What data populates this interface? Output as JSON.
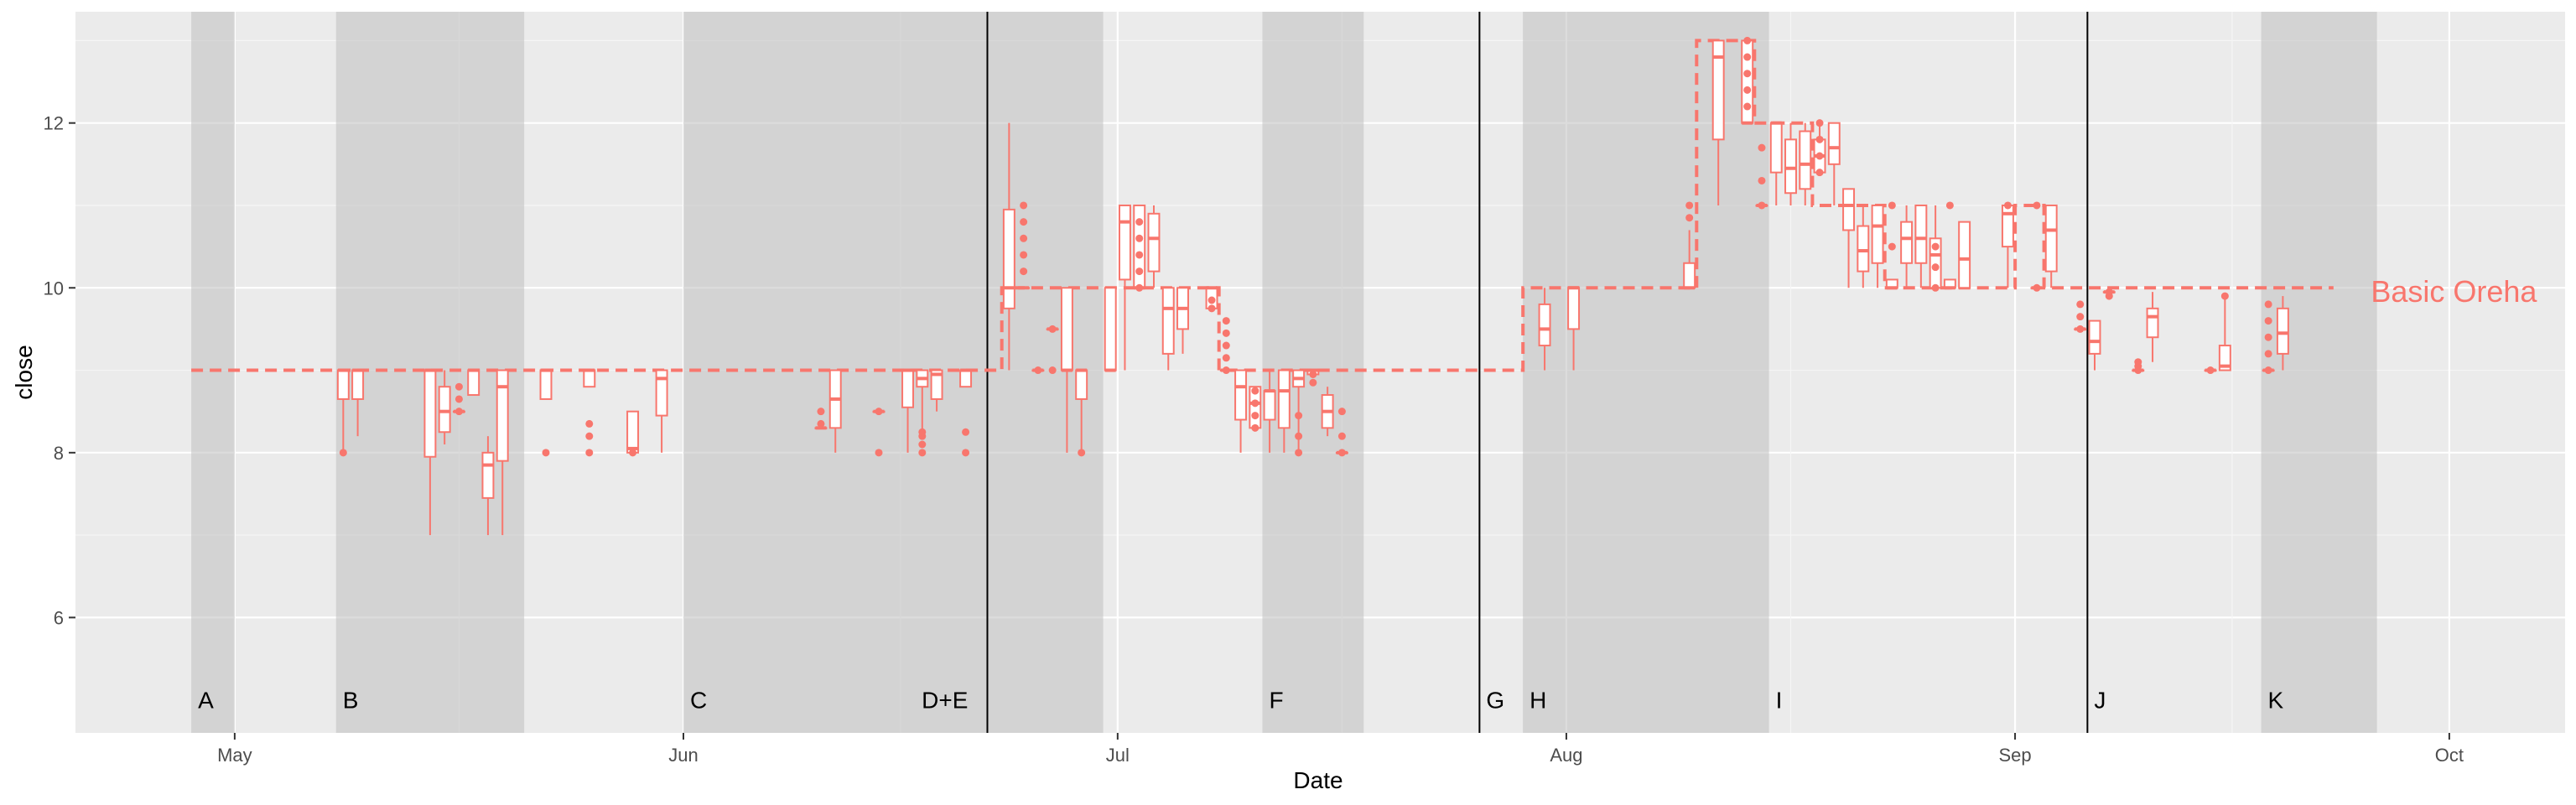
{
  "chart_data": {
    "type": "box",
    "title": "",
    "xlabel": "Date",
    "ylabel": "close",
    "x_axis": {
      "type": "date",
      "range": [
        "2023-04-20",
        "2023-10-09"
      ],
      "ticks": [
        "2023-05-01",
        "2023-06-01",
        "2023-07-01",
        "2023-08-01",
        "2023-09-01",
        "2023-10-01"
      ],
      "tick_labels": [
        "May",
        "Jun",
        "Jul",
        "Aug",
        "Sep",
        "Oct"
      ]
    },
    "y_axis": {
      "range": [
        4.6,
        13.35
      ],
      "ticks": [
        6,
        8,
        10,
        12
      ],
      "tick_labels": [
        "6",
        "8",
        "10",
        "12"
      ]
    },
    "grid": true,
    "colors": {
      "panel": "#ebebeb",
      "grid_major": "#ffffff",
      "series": "#f8766d",
      "shade": "#bfbfbf",
      "vline": "#000000"
    },
    "series_label": {
      "text": "Basic Oreha",
      "x": "2023-09-25",
      "y": 9.95
    },
    "shaded_regions": [
      {
        "start": "2023-04-28",
        "end": "2023-05-01"
      },
      {
        "start": "2023-05-08",
        "end": "2023-05-21"
      },
      {
        "start": "2023-06-01",
        "end": "2023-06-22"
      },
      {
        "start": "2023-06-22",
        "end": "2023-06-30"
      },
      {
        "start": "2023-07-11",
        "end": "2023-07-18"
      },
      {
        "start": "2023-07-29",
        "end": "2023-08-15"
      },
      {
        "start": "2023-09-18",
        "end": "2023-09-26"
      }
    ],
    "vertical_lines": [
      "2023-06-22",
      "2023-07-26",
      "2023-09-06"
    ],
    "region_labels": [
      {
        "text": "A",
        "x": "2023-04-28"
      },
      {
        "text": "B",
        "x": "2023-05-08"
      },
      {
        "text": "C",
        "x": "2023-06-01"
      },
      {
        "text": "D+E",
        "x": "2023-06-17"
      },
      {
        "text": "F",
        "x": "2023-07-11"
      },
      {
        "text": "G",
        "x": "2023-07-26"
      },
      {
        "text": "H",
        "x": "2023-07-29"
      },
      {
        "text": "I",
        "x": "2023-08-15"
      },
      {
        "text": "J",
        "x": "2023-09-06"
      },
      {
        "text": "K",
        "x": "2023-09-18"
      }
    ],
    "step_line": [
      [
        "2023-04-28",
        9
      ],
      [
        "2023-06-23",
        9
      ],
      [
        "2023-06-23",
        10
      ],
      [
        "2023-07-06",
        10
      ],
      [
        "2023-07-07",
        10
      ],
      [
        "2023-07-08",
        10
      ],
      [
        "2023-07-08",
        9
      ],
      [
        "2023-07-29",
        9
      ],
      [
        "2023-07-29",
        10
      ],
      [
        "2023-08-10",
        10
      ],
      [
        "2023-08-10",
        13
      ],
      [
        "2023-08-14",
        13
      ],
      [
        "2023-08-14",
        12
      ],
      [
        "2023-08-18",
        12
      ],
      [
        "2023-08-18",
        11
      ],
      [
        "2023-08-23",
        11
      ],
      [
        "2023-08-23",
        10
      ],
      [
        "2023-09-01",
        10
      ],
      [
        "2023-09-01",
        11
      ],
      [
        "2023-09-03",
        11
      ],
      [
        "2023-09-03",
        10
      ],
      [
        "2023-09-23",
        10
      ]
    ],
    "boxes": [
      {
        "x": "2023-05-08",
        "min": 8.0,
        "q1": 8.65,
        "median": 9.0,
        "q3": 9.0,
        "max": 9.0,
        "outliers": [
          8.0
        ]
      },
      {
        "x": "2023-05-09",
        "min": 8.2,
        "q1": 8.65,
        "median": 9.0,
        "q3": 9.0,
        "max": 9.0,
        "outliers": []
      },
      {
        "x": "2023-05-14",
        "min": 7.0,
        "q1": 7.95,
        "median": 9.0,
        "q3": 9.0,
        "max": 9.0,
        "outliers": []
      },
      {
        "x": "2023-05-15",
        "min": 8.1,
        "q1": 8.25,
        "median": 8.5,
        "q3": 8.8,
        "max": 9.0,
        "outliers": []
      },
      {
        "x": "2023-05-16",
        "min": 8.5,
        "q1": 8.5,
        "median": 8.5,
        "q3": 8.5,
        "max": 8.5,
        "outliers": [
          8.5,
          8.65,
          8.8
        ]
      },
      {
        "x": "2023-05-17",
        "min": 8.7,
        "q1": 8.7,
        "median": 9.0,
        "q3": 9.0,
        "max": 9.0,
        "outliers": []
      },
      {
        "x": "2023-05-18",
        "min": 7.0,
        "q1": 7.45,
        "median": 7.85,
        "q3": 8.0,
        "max": 8.2,
        "outliers": []
      },
      {
        "x": "2023-05-19",
        "min": 7.0,
        "q1": 7.9,
        "median": 8.8,
        "q3": 9.0,
        "max": 9.0,
        "outliers": []
      },
      {
        "x": "2023-05-22",
        "min": 8.65,
        "q1": 8.65,
        "median": 9.0,
        "q3": 9.0,
        "max": 9.0,
        "outliers": [
          8.0
        ]
      },
      {
        "x": "2023-05-25",
        "min": 8.8,
        "q1": 8.8,
        "median": 9.0,
        "q3": 9.0,
        "max": 9.0,
        "outliers": [
          8.35,
          8.2,
          8.0
        ]
      },
      {
        "x": "2023-05-28",
        "min": 8.0,
        "q1": 8.0,
        "median": 8.05,
        "q3": 8.5,
        "max": 8.5,
        "outliers": [
          8.0
        ]
      },
      {
        "x": "2023-05-30",
        "min": 8.0,
        "q1": 8.45,
        "median": 8.9,
        "q3": 9.0,
        "max": 9.0,
        "outliers": []
      },
      {
        "x": "2023-06-10",
        "min": 8.3,
        "q1": 8.3,
        "median": 8.3,
        "q3": 8.3,
        "max": 8.3,
        "outliers": [
          8.5,
          8.35
        ]
      },
      {
        "x": "2023-06-11",
        "min": 8.0,
        "q1": 8.3,
        "median": 8.65,
        "q3": 9.0,
        "max": 9.0,
        "outliers": []
      },
      {
        "x": "2023-06-14",
        "min": 8.5,
        "q1": 8.5,
        "median": 8.5,
        "q3": 8.5,
        "max": 8.5,
        "outliers": [
          8.5,
          8.0
        ]
      },
      {
        "x": "2023-06-16",
        "min": 8.0,
        "q1": 8.55,
        "median": 9.0,
        "q3": 9.0,
        "max": 9.0,
        "outliers": []
      },
      {
        "x": "2023-06-17",
        "min": 8.2,
        "q1": 8.8,
        "median": 8.9,
        "q3": 9.0,
        "max": 9.0,
        "outliers": [
          8.25,
          8.2,
          8.1,
          8.0
        ]
      },
      {
        "x": "2023-06-18",
        "min": 8.5,
        "q1": 8.65,
        "median": 8.95,
        "q3": 9.0,
        "max": 9.0,
        "outliers": []
      },
      {
        "x": "2023-06-20",
        "min": 8.8,
        "q1": 8.8,
        "median": 9.0,
        "q3": 9.0,
        "max": 9.0,
        "outliers": [
          8.25,
          8.0
        ]
      },
      {
        "x": "2023-06-23",
        "min": 9.0,
        "q1": 9.75,
        "median": 10.0,
        "q3": 10.95,
        "max": 12.0,
        "outliers": []
      },
      {
        "x": "2023-06-24",
        "min": 10.0,
        "q1": 10.0,
        "median": 10.0,
        "q3": 10.0,
        "max": 10.0,
        "outliers": [
          10.2,
          10.4,
          10.6,
          10.8,
          11.0
        ]
      },
      {
        "x": "2023-06-25",
        "min": 9.0,
        "q1": 9.0,
        "median": 9.0,
        "q3": 9.0,
        "max": 9.0,
        "outliers": [
          9.0
        ]
      },
      {
        "x": "2023-06-26",
        "min": 9.5,
        "q1": 9.5,
        "median": 9.5,
        "q3": 9.5,
        "max": 9.5,
        "outliers": [
          9.5,
          9.0
        ]
      },
      {
        "x": "2023-06-27",
        "min": 8.0,
        "q1": 9.0,
        "median": 9.0,
        "q3": 10.0,
        "max": 10.0,
        "outliers": []
      },
      {
        "x": "2023-06-28",
        "min": 8.0,
        "q1": 8.65,
        "median": 9.0,
        "q3": 9.0,
        "max": 9.0,
        "outliers": [
          8.0
        ]
      },
      {
        "x": "2023-06-30",
        "min": 9.0,
        "q1": 9.0,
        "median": 9.0,
        "q3": 10.0,
        "max": 10.0,
        "outliers": []
      },
      {
        "x": "2023-07-01",
        "min": 9.0,
        "q1": 10.1,
        "median": 10.8,
        "q3": 11.0,
        "max": 11.0,
        "outliers": []
      },
      {
        "x": "2023-07-02",
        "min": 10.0,
        "q1": 10.0,
        "median": 10.0,
        "q3": 11.0,
        "max": 11.0,
        "outliers": [
          10.8,
          10.6,
          10.4,
          10.2,
          10.0
        ]
      },
      {
        "x": "2023-07-03",
        "min": 10.0,
        "q1": 10.2,
        "median": 10.6,
        "q3": 10.9,
        "max": 11.0,
        "outliers": []
      },
      {
        "x": "2023-07-04",
        "min": 9.0,
        "q1": 9.2,
        "median": 9.75,
        "q3": 10.0,
        "max": 10.0,
        "outliers": []
      },
      {
        "x": "2023-07-05",
        "min": 9.2,
        "q1": 9.5,
        "median": 9.75,
        "q3": 10.0,
        "max": 10.0,
        "outliers": []
      },
      {
        "x": "2023-07-07",
        "min": 9.75,
        "q1": 9.75,
        "median": 10.0,
        "q3": 10.0,
        "max": 10.0,
        "outliers": [
          9.75,
          9.85
        ]
      },
      {
        "x": "2023-07-08",
        "min": 9.0,
        "q1": 9.0,
        "median": 9.0,
        "q3": 9.0,
        "max": 9.0,
        "outliers": [
          9.6,
          9.45,
          9.3,
          9.15,
          9.0
        ]
      },
      {
        "x": "2023-07-09",
        "min": 8.0,
        "q1": 8.4,
        "median": 8.8,
        "q3": 9.0,
        "max": 9.0,
        "outliers": []
      },
      {
        "x": "2023-07-10",
        "min": 8.3,
        "q1": 8.3,
        "median": 8.6,
        "q3": 8.8,
        "max": 8.8,
        "outliers": [
          8.3,
          8.45,
          8.6,
          8.75
        ]
      },
      {
        "x": "2023-07-11",
        "min": 8.0,
        "q1": 8.4,
        "median": 8.75,
        "q3": 8.75,
        "max": 9.0,
        "outliers": []
      },
      {
        "x": "2023-07-12",
        "min": 8.0,
        "q1": 8.3,
        "median": 8.75,
        "q3": 9.0,
        "max": 9.0,
        "outliers": []
      },
      {
        "x": "2023-07-13",
        "min": 8.0,
        "q1": 8.8,
        "median": 8.9,
        "q3": 9.0,
        "max": 9.0,
        "outliers": [
          8.0,
          8.2,
          8.45
        ]
      },
      {
        "x": "2023-07-14",
        "min": 8.95,
        "q1": 8.95,
        "median": 9.0,
        "q3": 9.0,
        "max": 9.0,
        "outliers": [
          8.95,
          8.85
        ]
      },
      {
        "x": "2023-07-15",
        "min": 8.2,
        "q1": 8.3,
        "median": 8.5,
        "q3": 8.7,
        "max": 8.8,
        "outliers": []
      },
      {
        "x": "2023-07-16",
        "min": 8.0,
        "q1": 8.0,
        "median": 8.0,
        "q3": 8.0,
        "max": 8.0,
        "outliers": [
          8.0,
          8.2,
          8.5
        ]
      },
      {
        "x": "2023-07-30",
        "min": 9.0,
        "q1": 9.3,
        "median": 9.5,
        "q3": 9.8,
        "max": 10.0,
        "outliers": []
      },
      {
        "x": "2023-08-01",
        "min": 9.0,
        "q1": 9.5,
        "median": 10.0,
        "q3": 10.0,
        "max": 10.0,
        "outliers": []
      },
      {
        "x": "2023-08-09",
        "min": 10.0,
        "q1": 10.0,
        "median": 10.0,
        "q3": 10.3,
        "max": 10.7,
        "outliers": [
          10.85,
          11.0
        ]
      },
      {
        "x": "2023-08-11",
        "min": 11.0,
        "q1": 11.8,
        "median": 12.8,
        "q3": 13.0,
        "max": 13.0,
        "outliers": []
      },
      {
        "x": "2023-08-13",
        "min": 12.0,
        "q1": 12.0,
        "median": 12.0,
        "q3": 13.0,
        "max": 13.0,
        "outliers": [
          12.2,
          12.4,
          12.6,
          12.8,
          13.0
        ]
      },
      {
        "x": "2023-08-14",
        "min": 11.0,
        "q1": 11.0,
        "median": 11.0,
        "q3": 11.0,
        "max": 11.0,
        "outliers": [
          11.0,
          11.3,
          11.7
        ]
      },
      {
        "x": "2023-08-15",
        "min": 11.0,
        "q1": 11.4,
        "median": 12.0,
        "q3": 12.0,
        "max": 12.0,
        "outliers": []
      },
      {
        "x": "2023-08-16",
        "min": 11.0,
        "q1": 11.15,
        "median": 11.45,
        "q3": 11.8,
        "max": 12.0,
        "outliers": []
      },
      {
        "x": "2023-08-17",
        "min": 11.0,
        "q1": 11.2,
        "median": 11.5,
        "q3": 11.9,
        "max": 12.0,
        "outliers": []
      },
      {
        "x": "2023-08-18",
        "min": 11.4,
        "q1": 11.4,
        "median": 11.6,
        "q3": 11.8,
        "max": 12.0,
        "outliers": [
          11.4,
          11.6,
          11.8,
          12.0
        ]
      },
      {
        "x": "2023-08-19",
        "min": 11.0,
        "q1": 11.5,
        "median": 11.7,
        "q3": 12.0,
        "max": 12.0,
        "outliers": []
      },
      {
        "x": "2023-08-20",
        "min": 10.0,
        "q1": 10.7,
        "median": 11.0,
        "q3": 11.2,
        "max": 11.2,
        "outliers": []
      },
      {
        "x": "2023-08-21",
        "min": 10.0,
        "q1": 10.2,
        "median": 10.45,
        "q3": 10.75,
        "max": 11.0,
        "outliers": []
      },
      {
        "x": "2023-08-22",
        "min": 10.0,
        "q1": 10.3,
        "median": 10.75,
        "q3": 11.0,
        "max": 11.0,
        "outliers": []
      },
      {
        "x": "2023-08-23",
        "min": 10.0,
        "q1": 10.0,
        "median": 10.0,
        "q3": 10.1,
        "max": 10.1,
        "outliers": [
          10.5,
          11.0
        ]
      },
      {
        "x": "2023-08-24",
        "min": 10.0,
        "q1": 10.3,
        "median": 10.6,
        "q3": 10.8,
        "max": 11.0,
        "outliers": []
      },
      {
        "x": "2023-08-25",
        "min": 10.0,
        "q1": 10.3,
        "median": 10.6,
        "q3": 11.0,
        "max": 11.0,
        "outliers": []
      },
      {
        "x": "2023-08-26",
        "min": 10.0,
        "q1": 10.0,
        "median": 10.4,
        "q3": 10.6,
        "max": 11.0,
        "outliers": [
          10.0,
          10.25,
          10.5
        ]
      },
      {
        "x": "2023-08-27",
        "min": 10.0,
        "q1": 10.0,
        "median": 10.0,
        "q3": 10.1,
        "max": 10.1,
        "outliers": [
          11.0
        ]
      },
      {
        "x": "2023-08-28",
        "min": 10.0,
        "q1": 10.0,
        "median": 10.35,
        "q3": 10.8,
        "max": 10.8,
        "outliers": []
      },
      {
        "x": "2023-08-31",
        "min": 10.0,
        "q1": 10.5,
        "median": 10.9,
        "q3": 11.0,
        "max": 11.0,
        "outliers": [
          11.0
        ]
      },
      {
        "x": "2023-09-02",
        "min": 10.0,
        "q1": 10.0,
        "median": 10.0,
        "q3": 10.0,
        "max": 10.0,
        "outliers": [
          10.0,
          11.0
        ]
      },
      {
        "x": "2023-09-03",
        "min": 10.0,
        "q1": 10.2,
        "median": 10.7,
        "q3": 11.0,
        "max": 11.0,
        "outliers": []
      },
      {
        "x": "2023-09-05",
        "min": 9.5,
        "q1": 9.5,
        "median": 9.5,
        "q3": 9.5,
        "max": 9.5,
        "outliers": [
          9.8,
          9.65,
          9.5
        ]
      },
      {
        "x": "2023-09-06",
        "min": 9.0,
        "q1": 9.2,
        "median": 9.35,
        "q3": 9.6,
        "max": 9.6,
        "outliers": []
      },
      {
        "x": "2023-09-07",
        "min": 9.95,
        "q1": 9.95,
        "median": 9.95,
        "q3": 9.95,
        "max": 9.95,
        "outliers": [
          9.9,
          9.95
        ]
      },
      {
        "x": "2023-09-09",
        "min": 9.0,
        "q1": 9.0,
        "median": 9.0,
        "q3": 9.0,
        "max": 9.0,
        "outliers": [
          9.0,
          9.05,
          9.1
        ]
      },
      {
        "x": "2023-09-10",
        "min": 9.1,
        "q1": 9.4,
        "median": 9.65,
        "q3": 9.75,
        "max": 9.95,
        "outliers": []
      },
      {
        "x": "2023-09-14",
        "min": 9.0,
        "q1": 9.0,
        "median": 9.0,
        "q3": 9.0,
        "max": 9.0,
        "outliers": [
          9.0
        ]
      },
      {
        "x": "2023-09-15",
        "min": 9.0,
        "q1": 9.0,
        "median": 9.05,
        "q3": 9.3,
        "max": 9.9,
        "outliers": [
          9.9
        ]
      },
      {
        "x": "2023-09-18",
        "min": 9.0,
        "q1": 9.0,
        "median": 9.0,
        "q3": 9.0,
        "max": 9.0,
        "outliers": [
          9.0,
          9.2,
          9.4,
          9.6,
          9.8
        ]
      },
      {
        "x": "2023-09-19",
        "min": 9.0,
        "q1": 9.2,
        "median": 9.45,
        "q3": 9.75,
        "max": 9.9,
        "outliers": []
      }
    ]
  }
}
